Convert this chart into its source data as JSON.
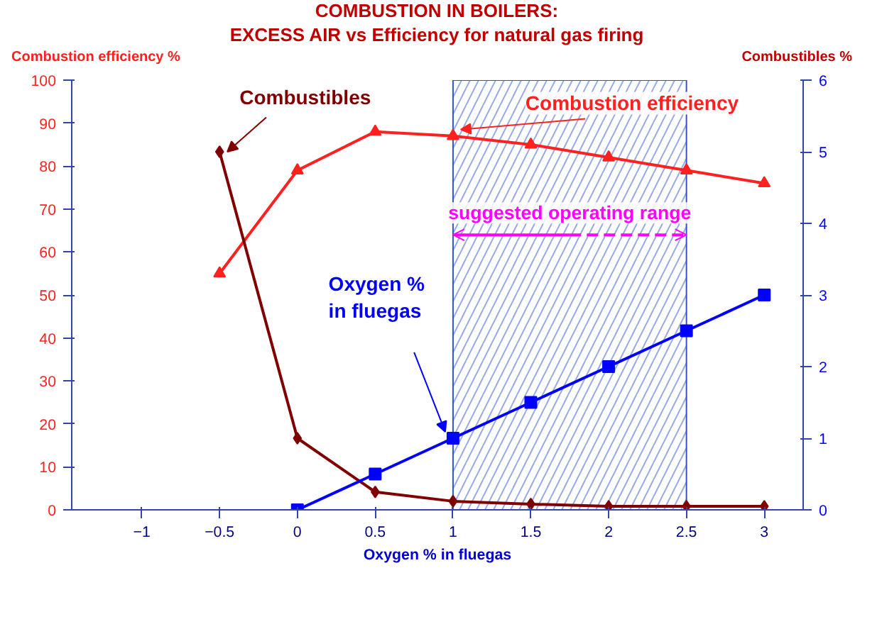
{
  "chart_data": {
    "type": "line",
    "title": "COMBUSTION IN BOILERS:",
    "subtitle": "EXCESS AIR  vs Efficiency for natural gas firing",
    "xlabel": "Oxygen % in fluegas",
    "ylabel": "Combustion efficiency %",
    "y2label": "Combustibles %",
    "x": [
      -0.5,
      0,
      0.5,
      1,
      1.5,
      2,
      2.5,
      3
    ],
    "series": [
      {
        "name": "Combustion efficiency",
        "color": "#ff2020",
        "marker": "triangle",
        "values": [
          55,
          79,
          88,
          87,
          85,
          82,
          79,
          76
        ]
      },
      {
        "name": "Combustibles",
        "color": "#800000",
        "marker": "diamond",
        "axis": "y2",
        "values": [
          5.0,
          1.0,
          0.25,
          0.12,
          0.08,
          0.05,
          0.05,
          0.05
        ]
      },
      {
        "name": "Oxygen % in fluegas",
        "color": "#0000ff",
        "marker": "square",
        "axis": "y2",
        "values": [
          null,
          0,
          0.5,
          1.0,
          1.5,
          2.0,
          2.5,
          3.0
        ]
      }
    ],
    "xlim": [
      -1.45,
      3.25
    ],
    "xticks": [
      -1,
      -0.5,
      0,
      0.5,
      1,
      1.5,
      2,
      2.5,
      3
    ],
    "ylim": [
      0,
      100
    ],
    "yticks": [
      0,
      10,
      20,
      30,
      40,
      50,
      60,
      70,
      80,
      90,
      100
    ],
    "y2lim": [
      0,
      6
    ],
    "y2ticks": [
      0,
      1,
      2,
      3,
      4,
      5,
      6
    ],
    "bands": [
      {
        "axis": "x",
        "from": 1,
        "to": 2.5,
        "label": "suggested operating range",
        "color": "#3355cc"
      }
    ],
    "grid": false,
    "legend": false
  }
}
